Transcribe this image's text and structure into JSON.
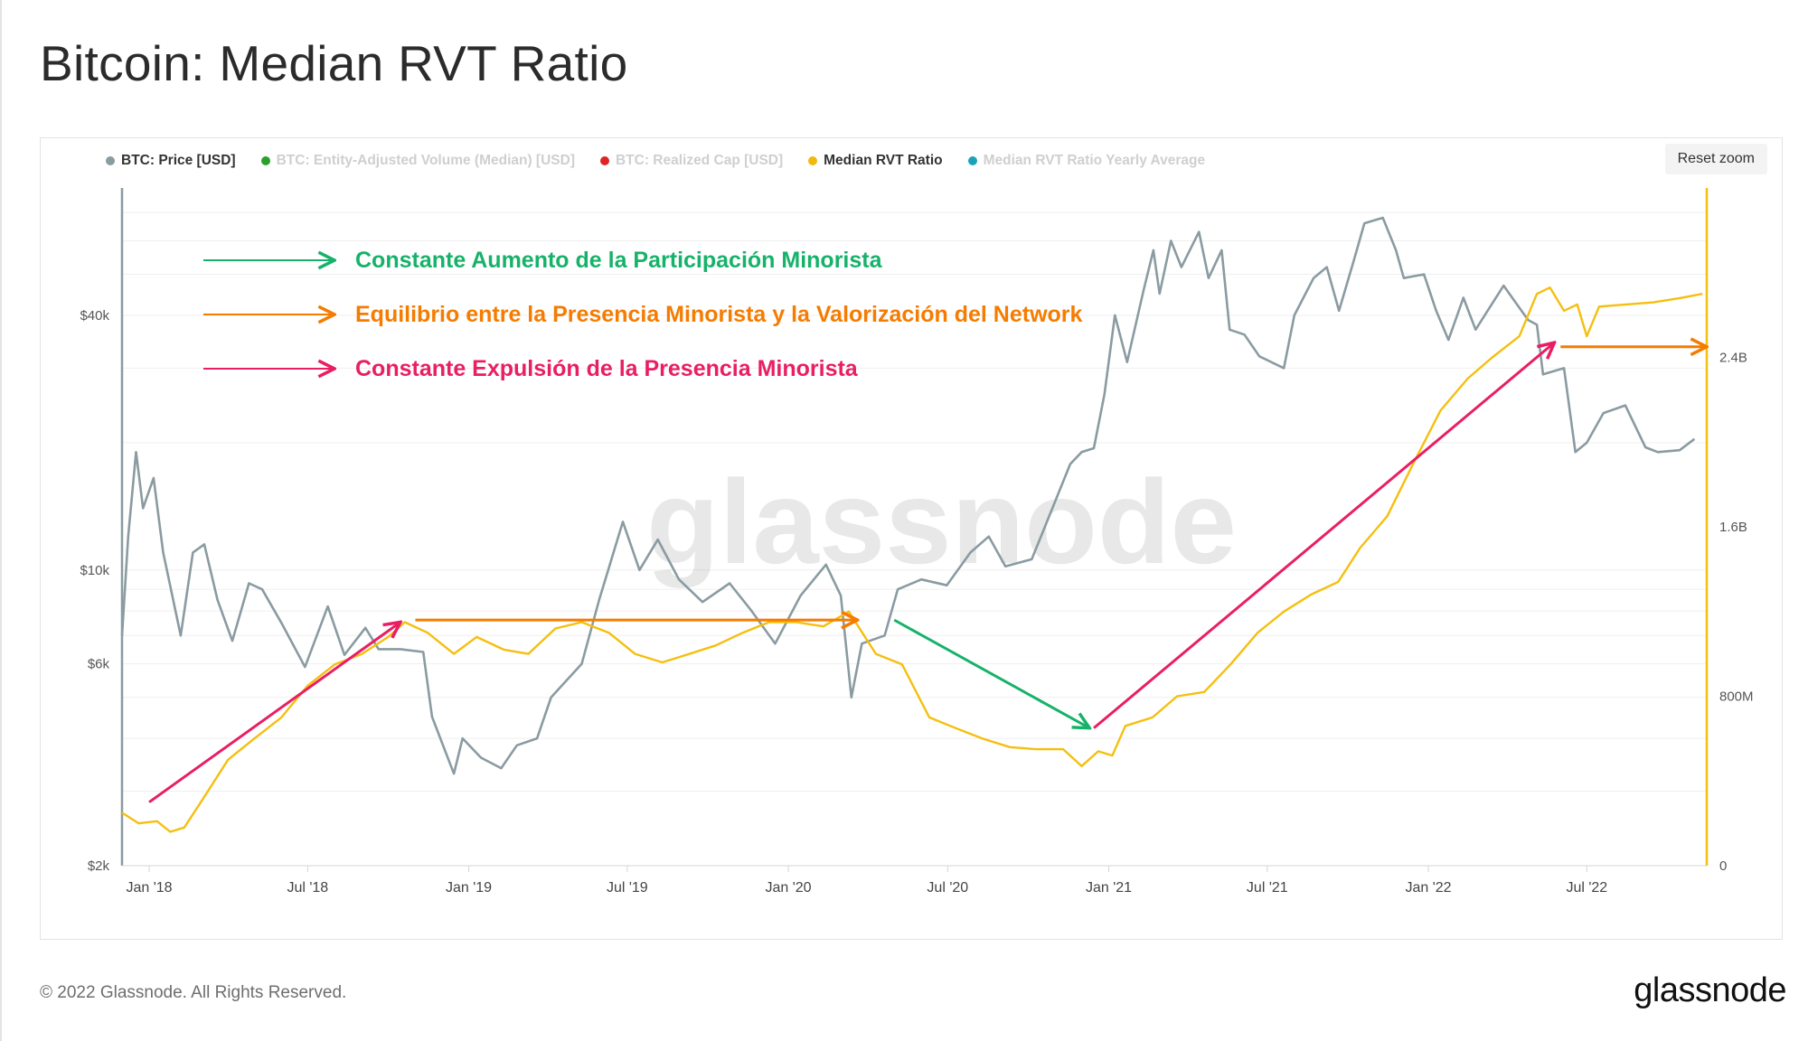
{
  "title": "Bitcoin: Median RVT Ratio",
  "legend": [
    {
      "label": "BTC: Price [USD]",
      "color": "#8a9ba1",
      "active": true
    },
    {
      "label": "BTC: Entity-Adjusted Volume (Median) [USD]",
      "color": "#2ca02c",
      "active": false
    },
    {
      "label": "BTC: Realized Cap [USD]",
      "color": "#e02424",
      "active": false
    },
    {
      "label": "Median RVT Ratio",
      "color": "#f0b90b",
      "active": true
    },
    {
      "label": "Median RVT Ratio Yearly Average",
      "color": "#1aa3b8",
      "active": false
    }
  ],
  "reset_zoom": "Reset zoom",
  "watermark": "glassnode",
  "footer": {
    "copyright": "© 2022 Glassnode. All Rights Reserved.",
    "logo": "glassnode"
  },
  "annotations": [
    {
      "text": "Constante Aumento de la Participación Minorista",
      "color": "#17b26a"
    },
    {
      "text": "Equilibrio entre la Presencia Minorista y la Valorización del Network",
      "color": "#f57c00"
    },
    {
      "text": "Constante Expulsión de la Presencia Minorista",
      "color": "#e91e63"
    }
  ],
  "chart_data": {
    "type": "line",
    "xaxis": {
      "range": [
        "2017-12-01",
        "2022-11-15"
      ],
      "ticks": [
        {
          "date": "2018-01-01",
          "label": "Jan '18"
        },
        {
          "date": "2018-07-01",
          "label": "Jul '18"
        },
        {
          "date": "2019-01-01",
          "label": "Jan '19"
        },
        {
          "date": "2019-07-01",
          "label": "Jul '19"
        },
        {
          "date": "2020-01-01",
          "label": "Jan '20"
        },
        {
          "date": "2020-07-01",
          "label": "Jul '20"
        },
        {
          "date": "2021-01-01",
          "label": "Jan '21"
        },
        {
          "date": "2021-07-01",
          "label": "Jul '21"
        },
        {
          "date": "2022-01-01",
          "label": "Jan '22"
        },
        {
          "date": "2022-07-01",
          "label": "Jul '22"
        }
      ]
    },
    "yaxis_left": {
      "scale": "log",
      "range": [
        2000,
        80000
      ],
      "ticks": [
        {
          "value": 2000,
          "label": "$2k"
        },
        {
          "value": 6000,
          "label": "$6k"
        },
        {
          "value": 10000,
          "label": "$10k"
        },
        {
          "value": 40000,
          "label": "$40k"
        }
      ]
    },
    "yaxis_right": {
      "scale": "linear",
      "range": [
        0,
        3200000000
      ],
      "ticks": [
        {
          "value": 0,
          "label": "0"
        },
        {
          "value": 800000000,
          "label": "800M"
        },
        {
          "value": 1600000000,
          "label": "1.6B"
        },
        {
          "value": 2400000000,
          "label": "2.4B"
        }
      ]
    },
    "series": [
      {
        "name": "BTC: Price [USD]",
        "color": "#8a9ba1",
        "axis": "left",
        "points": [
          [
            "2017-12-01",
            7000
          ],
          [
            "2017-12-08",
            12000
          ],
          [
            "2017-12-17",
            19000
          ],
          [
            "2017-12-25",
            14000
          ],
          [
            "2018-01-06",
            16500
          ],
          [
            "2018-01-17",
            11000
          ],
          [
            "2018-02-06",
            7000
          ],
          [
            "2018-02-20",
            11000
          ],
          [
            "2018-03-05",
            11500
          ],
          [
            "2018-03-20",
            8500
          ],
          [
            "2018-04-06",
            6800
          ],
          [
            "2018-04-25",
            9300
          ],
          [
            "2018-05-10",
            9000
          ],
          [
            "2018-06-01",
            7500
          ],
          [
            "2018-06-28",
            5900
          ],
          [
            "2018-07-24",
            8200
          ],
          [
            "2018-08-12",
            6300
          ],
          [
            "2018-09-05",
            7300
          ],
          [
            "2018-09-20",
            6500
          ],
          [
            "2018-10-15",
            6500
          ],
          [
            "2018-11-10",
            6400
          ],
          [
            "2018-11-20",
            4500
          ],
          [
            "2018-12-15",
            3300
          ],
          [
            "2018-12-25",
            4000
          ],
          [
            "2019-01-15",
            3600
          ],
          [
            "2019-02-07",
            3400
          ],
          [
            "2019-02-25",
            3850
          ],
          [
            "2019-03-20",
            4000
          ],
          [
            "2019-04-05",
            5000
          ],
          [
            "2019-05-10",
            6000
          ],
          [
            "2019-05-30",
            8500
          ],
          [
            "2019-06-26",
            13000
          ],
          [
            "2019-07-15",
            10000
          ],
          [
            "2019-08-05",
            11800
          ],
          [
            "2019-08-29",
            9500
          ],
          [
            "2019-09-25",
            8400
          ],
          [
            "2019-10-26",
            9300
          ],
          [
            "2019-11-20",
            8000
          ],
          [
            "2019-12-17",
            6700
          ],
          [
            "2020-01-15",
            8700
          ],
          [
            "2020-02-13",
            10300
          ],
          [
            "2020-03-01",
            8700
          ],
          [
            "2020-03-13",
            5000
          ],
          [
            "2020-03-25",
            6700
          ],
          [
            "2020-04-20",
            7000
          ],
          [
            "2020-05-05",
            9000
          ],
          [
            "2020-06-01",
            9500
          ],
          [
            "2020-06-30",
            9200
          ],
          [
            "2020-07-27",
            11000
          ],
          [
            "2020-08-17",
            12000
          ],
          [
            "2020-09-05",
            10200
          ],
          [
            "2020-10-05",
            10600
          ],
          [
            "2020-10-21",
            12800
          ],
          [
            "2020-11-18",
            17800
          ],
          [
            "2020-12-01",
            19000
          ],
          [
            "2020-12-15",
            19400
          ],
          [
            "2020-12-27",
            26000
          ],
          [
            "2021-01-08",
            40000
          ],
          [
            "2021-01-22",
            31000
          ],
          [
            "2021-02-10",
            46000
          ],
          [
            "2021-02-21",
            57000
          ],
          [
            "2021-02-28",
            45000
          ],
          [
            "2021-03-13",
            60000
          ],
          [
            "2021-03-25",
            52000
          ],
          [
            "2021-04-14",
            63000
          ],
          [
            "2021-04-25",
            49000
          ],
          [
            "2021-05-10",
            57000
          ],
          [
            "2021-05-19",
            37000
          ],
          [
            "2021-06-05",
            36000
          ],
          [
            "2021-06-22",
            32000
          ],
          [
            "2021-07-20",
            30000
          ],
          [
            "2021-08-01",
            40000
          ],
          [
            "2021-08-23",
            49000
          ],
          [
            "2021-09-07",
            52000
          ],
          [
            "2021-09-21",
            41000
          ],
          [
            "2021-10-08",
            54000
          ],
          [
            "2021-10-20",
            66000
          ],
          [
            "2021-11-10",
            68000
          ],
          [
            "2021-11-25",
            57000
          ],
          [
            "2021-12-04",
            49000
          ],
          [
            "2021-12-27",
            50000
          ],
          [
            "2022-01-10",
            41000
          ],
          [
            "2022-01-24",
            35000
          ],
          [
            "2022-02-10",
            44000
          ],
          [
            "2022-02-24",
            37000
          ],
          [
            "2022-03-28",
            47000
          ],
          [
            "2022-04-25",
            39000
          ],
          [
            "2022-05-05",
            38000
          ],
          [
            "2022-05-12",
            29000
          ],
          [
            "2022-06-05",
            30000
          ],
          [
            "2022-06-18",
            19000
          ],
          [
            "2022-07-01",
            20000
          ],
          [
            "2022-07-20",
            23500
          ],
          [
            "2022-08-14",
            24500
          ],
          [
            "2022-09-06",
            19500
          ],
          [
            "2022-09-20",
            19000
          ],
          [
            "2022-10-15",
            19200
          ],
          [
            "2022-11-01",
            20400
          ]
        ]
      },
      {
        "name": "Median RVT Ratio",
        "color": "#f5bf0f",
        "axis": "right",
        "points": [
          [
            "2017-12-01",
            250000000
          ],
          [
            "2017-12-20",
            200000000
          ],
          [
            "2018-01-10",
            210000000
          ],
          [
            "2018-01-25",
            160000000
          ],
          [
            "2018-02-10",
            180000000
          ],
          [
            "2018-03-01",
            300000000
          ],
          [
            "2018-04-01",
            500000000
          ],
          [
            "2018-05-01",
            600000000
          ],
          [
            "2018-06-01",
            700000000
          ],
          [
            "2018-07-01",
            850000000
          ],
          [
            "2018-08-01",
            950000000
          ],
          [
            "2018-09-01",
            1000000000
          ],
          [
            "2018-10-01",
            1080000000
          ],
          [
            "2018-10-20",
            1150000000
          ],
          [
            "2018-11-15",
            1100000000
          ],
          [
            "2018-12-15",
            1000000000
          ],
          [
            "2019-01-10",
            1080000000
          ],
          [
            "2019-02-10",
            1020000000
          ],
          [
            "2019-03-10",
            1000000000
          ],
          [
            "2019-04-10",
            1120000000
          ],
          [
            "2019-05-10",
            1150000000
          ],
          [
            "2019-06-10",
            1100000000
          ],
          [
            "2019-07-10",
            1000000000
          ],
          [
            "2019-08-10",
            960000000
          ],
          [
            "2019-09-10",
            1000000000
          ],
          [
            "2019-10-10",
            1040000000
          ],
          [
            "2019-11-10",
            1100000000
          ],
          [
            "2019-12-10",
            1150000000
          ],
          [
            "2020-01-10",
            1150000000
          ],
          [
            "2020-02-10",
            1130000000
          ],
          [
            "2020-03-10",
            1200000000
          ],
          [
            "2020-04-10",
            1000000000
          ],
          [
            "2020-05-10",
            950000000
          ],
          [
            "2020-06-10",
            700000000
          ],
          [
            "2020-07-10",
            650000000
          ],
          [
            "2020-08-10",
            600000000
          ],
          [
            "2020-09-10",
            560000000
          ],
          [
            "2020-10-10",
            550000000
          ],
          [
            "2020-11-10",
            550000000
          ],
          [
            "2020-12-01",
            470000000
          ],
          [
            "2020-12-20",
            540000000
          ],
          [
            "2021-01-05",
            520000000
          ],
          [
            "2021-01-20",
            660000000
          ],
          [
            "2021-02-20",
            700000000
          ],
          [
            "2021-03-20",
            800000000
          ],
          [
            "2021-04-20",
            820000000
          ],
          [
            "2021-05-20",
            950000000
          ],
          [
            "2021-06-20",
            1100000000
          ],
          [
            "2021-07-20",
            1200000000
          ],
          [
            "2021-08-20",
            1280000000
          ],
          [
            "2021-09-20",
            1340000000
          ],
          [
            "2021-10-15",
            1500000000
          ],
          [
            "2021-11-15",
            1650000000
          ],
          [
            "2021-12-15",
            1900000000
          ],
          [
            "2022-01-15",
            2150000000
          ],
          [
            "2022-02-15",
            2300000000
          ],
          [
            "2022-03-15",
            2400000000
          ],
          [
            "2022-04-15",
            2500000000
          ],
          [
            "2022-05-05",
            2700000000
          ],
          [
            "2022-05-20",
            2730000000
          ],
          [
            "2022-06-05",
            2620000000
          ],
          [
            "2022-06-20",
            2650000000
          ],
          [
            "2022-07-01",
            2500000000
          ],
          [
            "2022-07-15",
            2640000000
          ],
          [
            "2022-08-15",
            2650000000
          ],
          [
            "2022-09-15",
            2660000000
          ],
          [
            "2022-10-15",
            2680000000
          ],
          [
            "2022-11-10",
            2700000000
          ]
        ]
      }
    ],
    "annotation_arrows": [
      {
        "color": "#e91e63",
        "from": [
          "2018-01-01",
          300000000
        ],
        "to": [
          "2018-10-15",
          1150000000
        ]
      },
      {
        "color": "#f57c00",
        "from": [
          "2018-11-01",
          1160000000
        ],
        "to": [
          "2020-03-20",
          1160000000
        ]
      },
      {
        "color": "#17b26a",
        "from": [
          "2020-05-01",
          1160000000
        ],
        "to": [
          "2020-12-10",
          650000000
        ]
      },
      {
        "color": "#e91e63",
        "from": [
          "2020-12-15",
          650000000
        ],
        "to": [
          "2022-05-25",
          2470000000
        ]
      },
      {
        "color": "#f57c00",
        "from": [
          "2022-06-01",
          2450000000
        ],
        "to": [
          "2022-11-15",
          2450000000
        ]
      }
    ]
  }
}
